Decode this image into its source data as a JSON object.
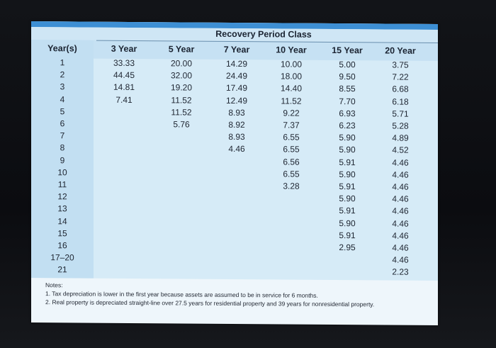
{
  "table": {
    "group_header": "Recovery Period Class",
    "columns": [
      "Year(s)",
      "3 Year",
      "5 Year",
      "7 Year",
      "10 Year",
      "15 Year",
      "20 Year"
    ],
    "rows": [
      [
        "1",
        "33.33",
        "20.00",
        "14.29",
        "10.00",
        "5.00",
        "3.75"
      ],
      [
        "2",
        "44.45",
        "32.00",
        "24.49",
        "18.00",
        "9.50",
        "7.22"
      ],
      [
        "3",
        "14.81",
        "19.20",
        "17.49",
        "14.40",
        "8.55",
        "6.68"
      ],
      [
        "4",
        "7.41",
        "11.52",
        "12.49",
        "11.52",
        "7.70",
        "6.18"
      ],
      [
        "5",
        "",
        "11.52",
        "8.93",
        "9.22",
        "6.93",
        "5.71"
      ],
      [
        "6",
        "",
        "5.76",
        "8.92",
        "7.37",
        "6.23",
        "5.28"
      ],
      [
        "7",
        "",
        "",
        "8.93",
        "6.55",
        "5.90",
        "4.89"
      ],
      [
        "8",
        "",
        "",
        "4.46",
        "6.55",
        "5.90",
        "4.52"
      ],
      [
        "9",
        "",
        "",
        "",
        "6.56",
        "5.91",
        "4.46"
      ],
      [
        "10",
        "",
        "",
        "",
        "6.55",
        "5.90",
        "4.46"
      ],
      [
        "11",
        "",
        "",
        "",
        "3.28",
        "5.91",
        "4.46"
      ],
      [
        "12",
        "",
        "",
        "",
        "",
        "5.90",
        "4.46"
      ],
      [
        "13",
        "",
        "",
        "",
        "",
        "5.91",
        "4.46"
      ],
      [
        "14",
        "",
        "",
        "",
        "",
        "5.90",
        "4.46"
      ],
      [
        "15",
        "",
        "",
        "",
        "",
        "5.91",
        "4.46"
      ],
      [
        "16",
        "",
        "",
        "",
        "",
        "2.95",
        "4.46"
      ],
      [
        "17–20",
        "",
        "",
        "",
        "",
        "",
        "4.46"
      ],
      [
        "21",
        "",
        "",
        "",
        "",
        "",
        "2.23"
      ]
    ]
  },
  "notes": {
    "title": "Notes:",
    "items": [
      "1. Tax depreciation is lower in the first year because assets are assumed to be in service for 6 months.",
      "2. Real property is depreciated straight-line over 27.5 years for residential property and 39 years for nonresidential property."
    ]
  }
}
